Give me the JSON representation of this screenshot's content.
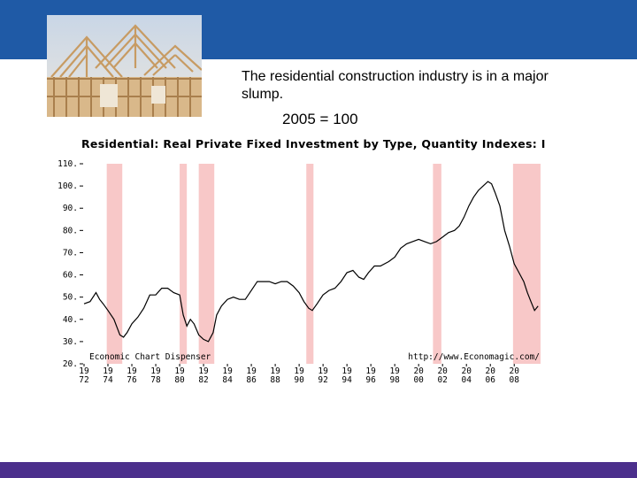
{
  "slide": {
    "caption": "The residential construction industry is in a major slump.",
    "index_note": "2005 = 100",
    "photo_subject": "house-framing-photo"
  },
  "colors": {
    "top_band": "#1f5aa6",
    "bottom_band": "#4b2f8c",
    "recession": "#f8c8c8",
    "series_line": "#000000"
  },
  "chart_data": {
    "type": "line",
    "title": "Residential: Real Private Fixed Investment by Type, Quantity Indexes: I",
    "xlabel": "",
    "ylabel": "",
    "xlim": [
      1972,
      2010.5
    ],
    "ylim": [
      20,
      110
    ],
    "y_ticks": [
      20,
      30,
      40,
      50,
      60,
      70,
      80,
      90,
      100,
      110
    ],
    "x_ticks": [
      {
        "x": 1972,
        "top": "19",
        "bottom": "72"
      },
      {
        "x": 1974,
        "top": "19",
        "bottom": "74"
      },
      {
        "x": 1976,
        "top": "19",
        "bottom": "76"
      },
      {
        "x": 1978,
        "top": "19",
        "bottom": "78"
      },
      {
        "x": 1980,
        "top": "19",
        "bottom": "80"
      },
      {
        "x": 1982,
        "top": "19",
        "bottom": "82"
      },
      {
        "x": 1984,
        "top": "19",
        "bottom": "84"
      },
      {
        "x": 1986,
        "top": "19",
        "bottom": "86"
      },
      {
        "x": 1988,
        "top": "19",
        "bottom": "88"
      },
      {
        "x": 1990,
        "top": "19",
        "bottom": "90"
      },
      {
        "x": 1992,
        "top": "19",
        "bottom": "92"
      },
      {
        "x": 1994,
        "top": "19",
        "bottom": "94"
      },
      {
        "x": 1996,
        "top": "19",
        "bottom": "96"
      },
      {
        "x": 1998,
        "top": "19",
        "bottom": "98"
      },
      {
        "x": 2000,
        "top": "20",
        "bottom": "00"
      },
      {
        "x": 2002,
        "top": "20",
        "bottom": "02"
      },
      {
        "x": 2004,
        "top": "20",
        "bottom": "04"
      },
      {
        "x": 2006,
        "top": "20",
        "bottom": "06"
      },
      {
        "x": 2008,
        "top": "20",
        "bottom": "08"
      }
    ],
    "recessions": [
      [
        1973.9,
        1975.2
      ],
      [
        1980.0,
        1980.6
      ],
      [
        1981.6,
        1982.9
      ],
      [
        1990.6,
        1991.2
      ],
      [
        2001.2,
        2001.9
      ],
      [
        2007.9,
        2010.2
      ]
    ],
    "grid": false,
    "annotations": {
      "left": "Economic Chart Dispenser",
      "right": "http://www.Economagic.com/"
    },
    "series": [
      {
        "x": [
          1972,
          1972.5,
          1973,
          1973.3,
          1973.6,
          1974,
          1974.5,
          1975,
          1975.3,
          1975.6,
          1976,
          1976.5,
          1977,
          1977.5,
          1978,
          1978.5,
          1979,
          1979.5,
          1980,
          1980.3,
          1980.6,
          1980.9,
          1981.2,
          1981.6,
          1982,
          1982.4,
          1982.8,
          1983.1,
          1983.5,
          1984,
          1984.5,
          1985,
          1985.5,
          1986,
          1986.5,
          1987,
          1987.5,
          1988,
          1988.5,
          1989,
          1989.5,
          1990,
          1990.4,
          1990.8,
          1991.1,
          1991.5,
          1992,
          1992.5,
          1993,
          1993.5,
          1994,
          1994.5,
          1995,
          1995.4,
          1995.8,
          1996.3,
          1996.8,
          1997.5,
          1998,
          1998.5,
          1999,
          1999.5,
          2000,
          2000.5,
          2001,
          2001.5,
          2002,
          2002.5,
          2003,
          2003.4,
          2003.8,
          2004.2,
          2004.6,
          2005,
          2005.4,
          2005.8,
          2006.1,
          2006.4,
          2006.8,
          2007.2,
          2007.6,
          2008,
          2008.4,
          2008.8,
          2009.1,
          2009.4,
          2009.7,
          2010
        ],
        "values": [
          47,
          48,
          52,
          49,
          47,
          44,
          40,
          33,
          32,
          34,
          38,
          41,
          45,
          51,
          51,
          54,
          54,
          52,
          51,
          42,
          37,
          40,
          38,
          33,
          31,
          30,
          34,
          42,
          46,
          49,
          50,
          49,
          49,
          53,
          57,
          57,
          57,
          56,
          57,
          57,
          55,
          52,
          48,
          45,
          44,
          47,
          51,
          53,
          54,
          57,
          61,
          62,
          59,
          58,
          61,
          64,
          64,
          66,
          68,
          72,
          74,
          75,
          76,
          75,
          74,
          75,
          77,
          79,
          80,
          82,
          86,
          91,
          95,
          98,
          100,
          102,
          101,
          97,
          91,
          80,
          73,
          65,
          61,
          57,
          52,
          48,
          44,
          46
        ]
      }
    ]
  }
}
